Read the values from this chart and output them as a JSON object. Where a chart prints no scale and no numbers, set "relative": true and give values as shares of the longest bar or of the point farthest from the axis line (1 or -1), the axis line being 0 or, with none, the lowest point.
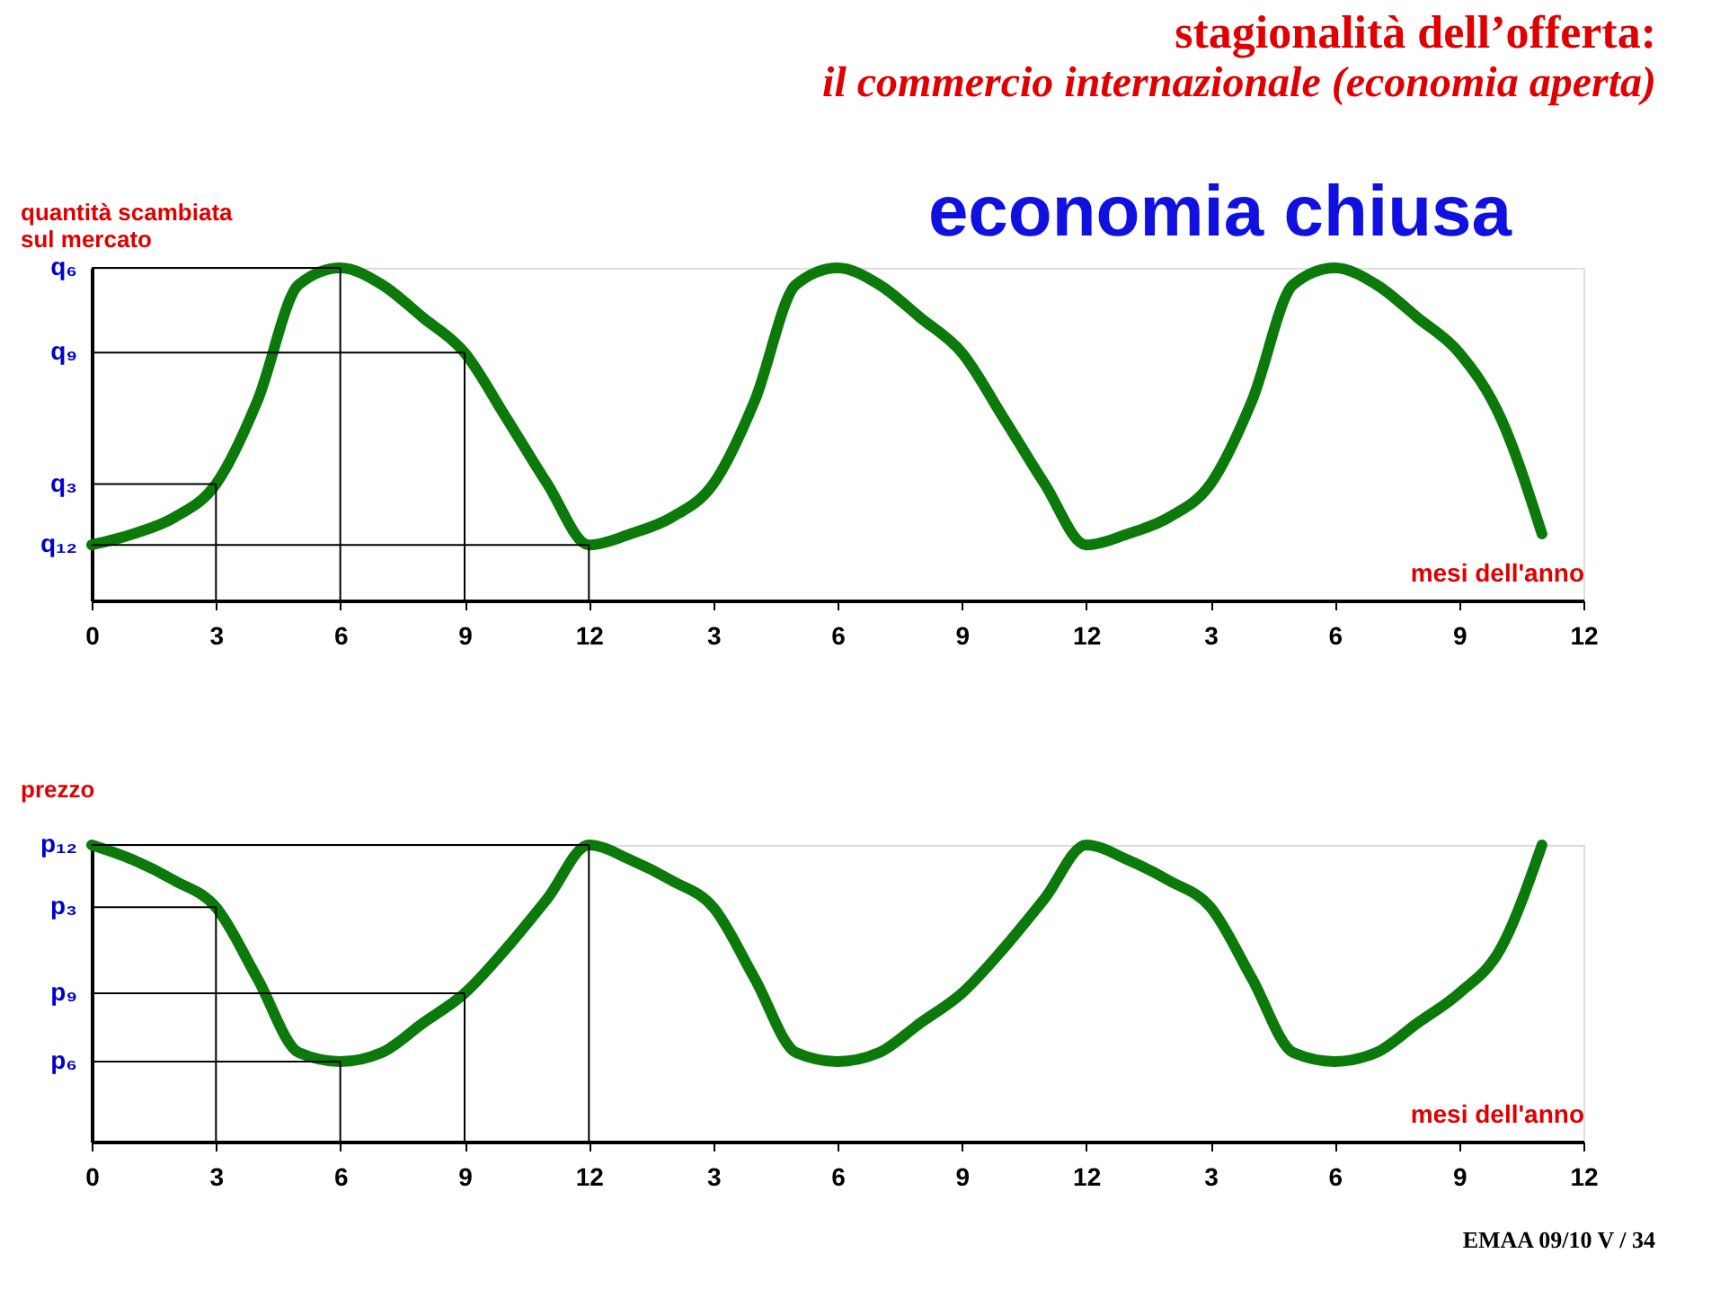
{
  "chart_data": [
    {
      "type": "line",
      "relative": true,
      "title": "stagionalità dell’offerta:",
      "subtitle": "il commercio internazionale (economia aperta)",
      "ylabel": "quantità scambiata\nsul mercato",
      "xlabel": "mesi dell'anno",
      "annotations": [
        "economia chiusa"
      ],
      "ref_lines": [
        {
          "axis": "y",
          "value": 1,
          "label": "q₆"
        },
        {
          "axis": "y",
          "value": 0.745,
          "label": "q₉"
        },
        {
          "axis": "y",
          "value": 0.35,
          "label": "q₃"
        },
        {
          "axis": "y",
          "value": 0.167,
          "label": "q₁₂"
        },
        {
          "axis": "x",
          "value": "3"
        },
        {
          "axis": "x",
          "value": "6"
        },
        {
          "axis": "x",
          "value": "9"
        },
        {
          "axis": "x",
          "value": "12"
        }
      ],
      "categories": [
        "0",
        null,
        null,
        "3",
        null,
        null,
        "6",
        null,
        null,
        "9",
        null,
        null,
        "12",
        null,
        null,
        "3",
        null,
        null,
        "6",
        null,
        null,
        "9",
        null,
        null,
        "12",
        null,
        null,
        "3",
        null,
        null,
        "6",
        null,
        null,
        "9",
        null,
        null,
        "12"
      ],
      "legend": false,
      "marker": "none",
      "line_style": "solid",
      "series": [
        {
          "color": "#0b7a0b",
          "values": [
            0.167,
            0.2,
            0.25,
            0.35,
            0.6,
            0.95,
            1.0,
            0.95,
            0.85,
            0.745,
            0.55,
            0.35,
            0.167,
            0.2,
            0.25,
            0.35,
            0.6,
            0.95,
            1.0,
            0.95,
            0.85,
            0.745,
            0.55,
            0.35,
            0.167,
            0.2,
            0.25,
            0.35,
            0.6,
            0.95,
            1.0,
            0.95,
            0.85,
            0.745,
            0.55,
            0.2,
            null
          ]
        }
      ]
    },
    {
      "type": "line",
      "relative": true,
      "ylabel": "prezzo",
      "xlabel": "mesi dell'anno",
      "annotations": [
        "EMAA 09/10    V / 34"
      ],
      "ref_lines": [
        {
          "axis": "y",
          "value": 1,
          "label": "p₁₂"
        },
        {
          "axis": "y",
          "value": 0.79,
          "label": "p₃"
        },
        {
          "axis": "y",
          "value": 0.5,
          "label": "p₉"
        },
        {
          "axis": "y",
          "value": 0.27,
          "label": "p₆"
        },
        {
          "axis": "x",
          "value": "3"
        },
        {
          "axis": "x",
          "value": "6"
        },
        {
          "axis": "x",
          "value": "9"
        },
        {
          "axis": "x",
          "value": "12"
        }
      ],
      "categories": [
        "0",
        null,
        null,
        "3",
        null,
        null,
        "6",
        null,
        null,
        "9",
        null,
        null,
        "12",
        null,
        null,
        "3",
        null,
        null,
        "6",
        null,
        null,
        "9",
        null,
        null,
        "12",
        null,
        null,
        "3",
        null,
        null,
        "6",
        null,
        null,
        "9",
        null,
        null,
        "12"
      ],
      "legend": false,
      "marker": "none",
      "line_style": "solid",
      "series": [
        {
          "color": "#0b7a0b",
          "values": [
            1.0,
            0.95,
            0.88,
            0.79,
            0.55,
            0.3,
            0.27,
            0.3,
            0.4,
            0.5,
            0.65,
            0.82,
            1.0,
            0.95,
            0.88,
            0.79,
            0.55,
            0.3,
            0.27,
            0.3,
            0.4,
            0.5,
            0.65,
            0.82,
            1.0,
            0.95,
            0.88,
            0.79,
            0.55,
            0.3,
            0.27,
            0.3,
            0.4,
            0.5,
            0.65,
            1.0,
            null
          ]
        }
      ]
    }
  ]
}
